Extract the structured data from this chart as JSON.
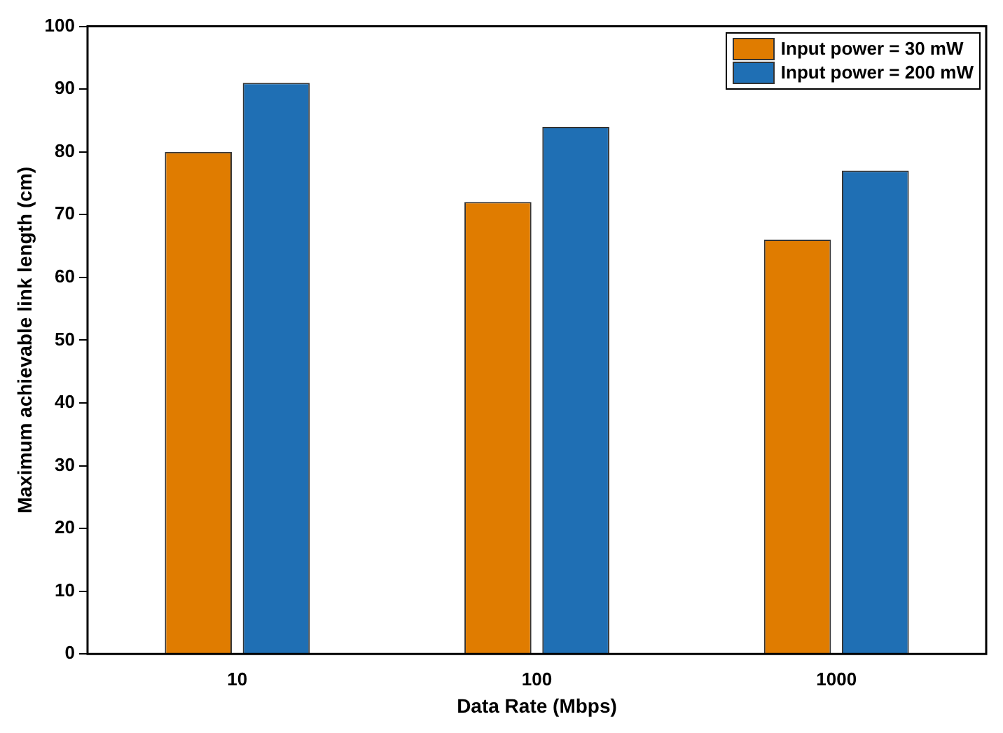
{
  "chart_data": {
    "type": "bar",
    "xlabel": "Data Rate (Mbps)",
    "ylabel": "Maximum achievable link length (cm)",
    "categories": [
      "10",
      "100",
      "1000"
    ],
    "series": [
      {
        "name": "Input power = 30 mW",
        "color": "#e07c00",
        "values": [
          80,
          72,
          66
        ]
      },
      {
        "name": "Input power = 200 mW",
        "color": "#1f6fb4",
        "values": [
          91,
          84,
          77
        ]
      }
    ],
    "ylim": [
      0,
      100
    ],
    "yticks": [
      0,
      10,
      20,
      30,
      40,
      50,
      60,
      70,
      80,
      90,
      100
    ],
    "grid": false,
    "legend": "top right"
  }
}
